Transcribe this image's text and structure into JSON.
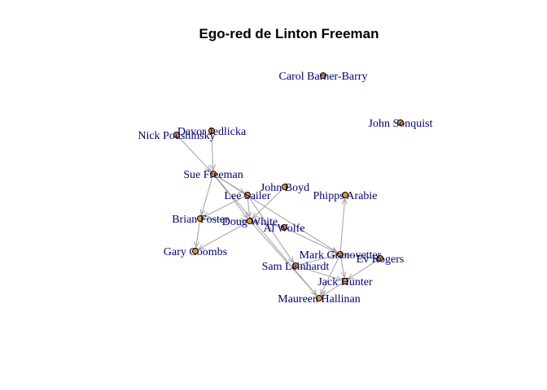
{
  "title": "Ego-red de Linton Freeman",
  "colors": {
    "node_fill": "#E69F00",
    "node_stroke": "#000000",
    "edge": "#A0A0A0",
    "label": "#00007F",
    "background": "#FFFFFF"
  },
  "network": {
    "nodes": [
      {
        "id": "carol",
        "label": "Carol Barner-Barry"
      },
      {
        "id": "john_s",
        "label": "John Sonquist"
      },
      {
        "id": "davor",
        "label": "Davor Jedlicka"
      },
      {
        "id": "nick",
        "label": "Nick Poushinsky"
      },
      {
        "id": "sue",
        "label": "Sue Freeman"
      },
      {
        "id": "john_b",
        "label": "John Boyd"
      },
      {
        "id": "lee",
        "label": "Lee Sailer"
      },
      {
        "id": "phipps",
        "label": "Phipps Arabie"
      },
      {
        "id": "brian",
        "label": "Brian Foster"
      },
      {
        "id": "doug",
        "label": "Doug White"
      },
      {
        "id": "al",
        "label": "Al Wolfe"
      },
      {
        "id": "gary",
        "label": "Gary Coombs"
      },
      {
        "id": "mark",
        "label": "Mark Granovetter"
      },
      {
        "id": "ev",
        "label": "Ev Rogers"
      },
      {
        "id": "sam",
        "label": "Sam Leinhardt"
      },
      {
        "id": "jack",
        "label": "Jack Hunter"
      },
      {
        "id": "maureen",
        "label": "Maureen Hallinan"
      }
    ],
    "edges": [
      [
        "nick",
        "sue"
      ],
      [
        "davor",
        "sue"
      ],
      [
        "sue",
        "brian"
      ],
      [
        "sue",
        "doug"
      ],
      [
        "sue",
        "lee"
      ],
      [
        "sue",
        "mark"
      ],
      [
        "sue",
        "maureen"
      ],
      [
        "lee",
        "doug"
      ],
      [
        "lee",
        "sam"
      ],
      [
        "lee",
        "brian"
      ],
      [
        "john_b",
        "doug"
      ],
      [
        "al",
        "doug"
      ],
      [
        "al",
        "mark"
      ],
      [
        "brian",
        "doug"
      ],
      [
        "brian",
        "gary"
      ],
      [
        "doug",
        "gary"
      ],
      [
        "doug",
        "maureen"
      ],
      [
        "mark",
        "phipps"
      ],
      [
        "mark",
        "jack"
      ],
      [
        "ev",
        "jack"
      ],
      [
        "ev",
        "mark"
      ],
      [
        "sam",
        "jack"
      ],
      [
        "jack",
        "maureen"
      ],
      [
        "mark",
        "maureen"
      ],
      [
        "sam",
        "mark"
      ]
    ]
  }
}
